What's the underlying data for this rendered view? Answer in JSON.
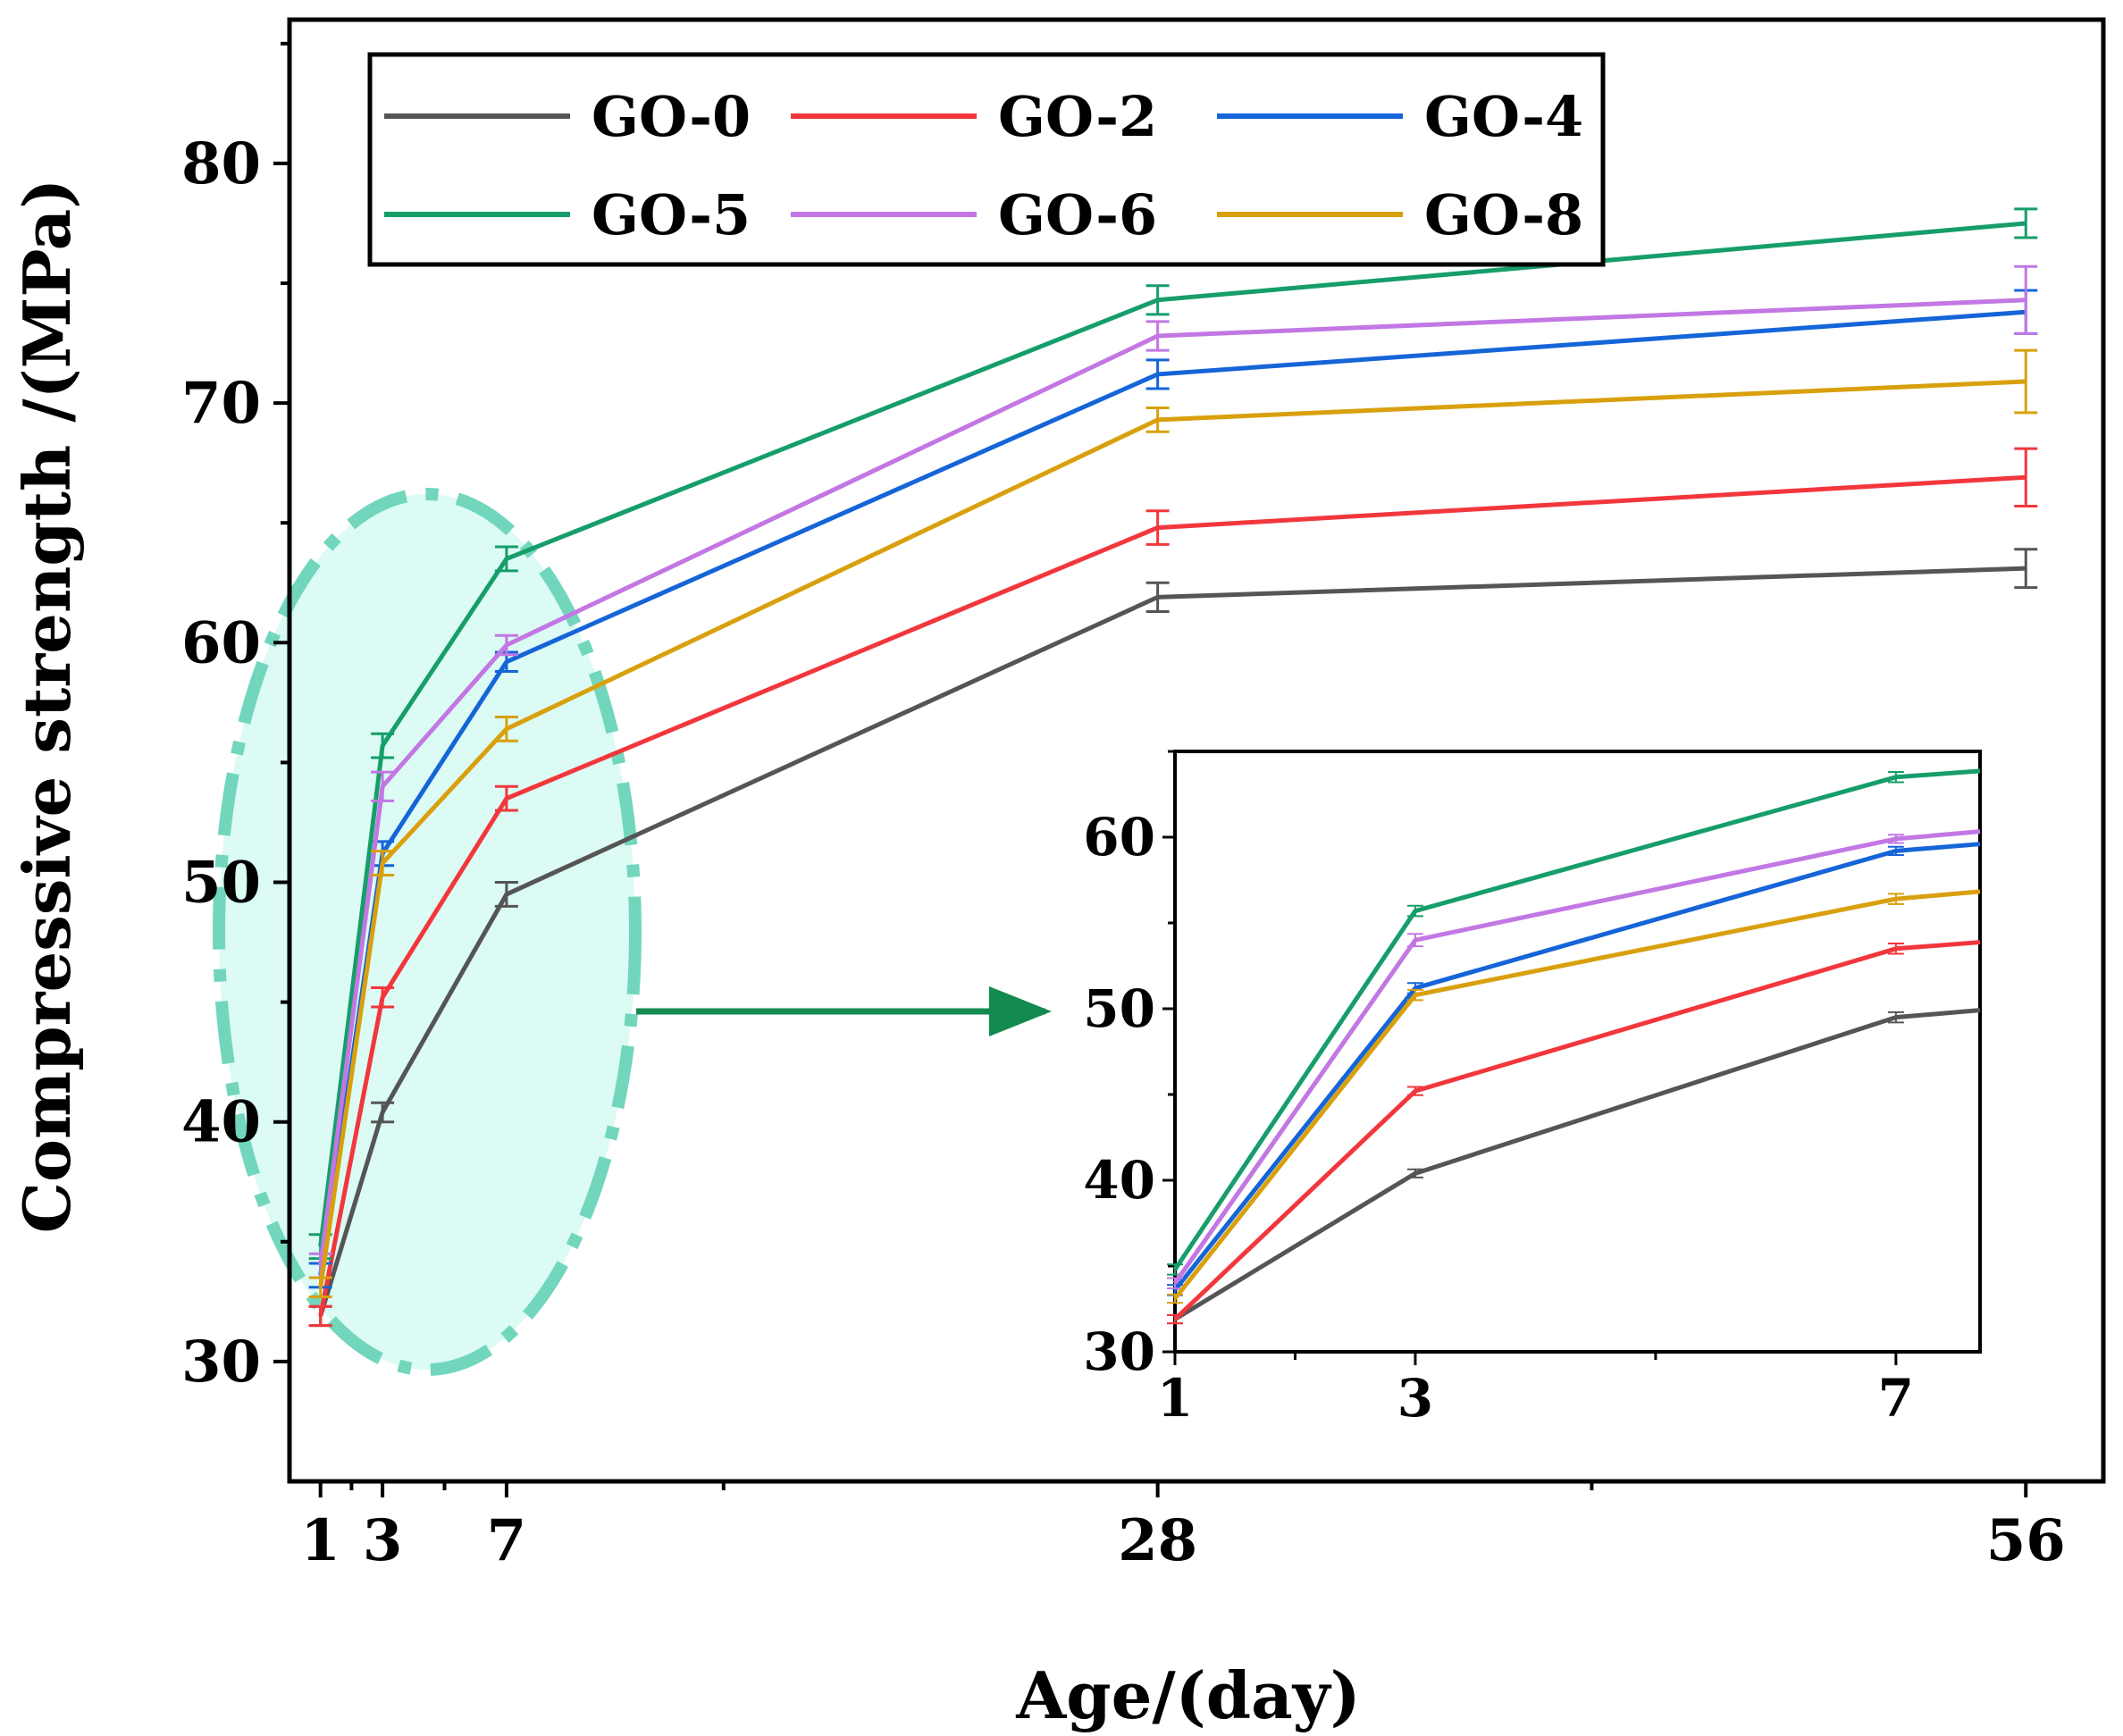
{
  "chart_data": {
    "type": "line",
    "xlabel": "Age/(day)",
    "ylabel": "Compressive strength /(MPa)",
    "x": [
      1,
      3,
      7,
      28,
      56
    ],
    "xticks": [
      1,
      3,
      7,
      28,
      56
    ],
    "xlim": [
      0,
      58.5
    ],
    "ylim": [
      25,
      86
    ],
    "yticks": [
      30,
      40,
      50,
      60,
      70,
      80
    ],
    "series": [
      {
        "name": "GO-0",
        "color": "#555555",
        "values": [
          31.9,
          40.4,
          49.5,
          61.9,
          63.1
        ],
        "errors": [
          0.4,
          0.4,
          0.5,
          0.6,
          0.8
        ]
      },
      {
        "name": "GO-2",
        "color": "#f2373c",
        "values": [
          31.9,
          45.2,
          53.5,
          64.8,
          66.9
        ],
        "errors": [
          0.4,
          0.4,
          0.5,
          0.7,
          1.2
        ]
      },
      {
        "name": "GO-4",
        "color": "#1565d8",
        "values": [
          33.6,
          51.2,
          59.2,
          71.2,
          73.8
        ],
        "errors": [
          0.5,
          0.5,
          0.4,
          0.6,
          0.9
        ]
      },
      {
        "name": "GO-5",
        "color": "#169e6a",
        "values": [
          34.8,
          55.7,
          63.5,
          74.3,
          77.5
        ],
        "errors": [
          0.5,
          0.5,
          0.5,
          0.6,
          0.6
        ]
      },
      {
        "name": "GO-6",
        "color": "#c277e3",
        "values": [
          34.0,
          54.0,
          59.9,
          72.8,
          74.3
        ],
        "errors": [
          0.5,
          0.6,
          0.4,
          0.6,
          1.4
        ]
      },
      {
        "name": "GO-8",
        "color": "#d9a00e",
        "values": [
          33.1,
          50.8,
          56.4,
          69.3,
          70.9
        ],
        "errors": [
          0.4,
          0.5,
          0.5,
          0.5,
          1.3
        ]
      }
    ],
    "legend": "top-left, 2 rows x 3 columns, boxed",
    "annotations": [
      "dashed ellipse highlighting the 1-7 day region with an arrow pointing to the inset"
    ],
    "inset": {
      "type": "line",
      "xticks": [
        1,
        3,
        7
      ],
      "yticks": [
        30,
        40,
        50,
        60
      ],
      "xlim": [
        1,
        7.7
      ],
      "ylim": [
        30,
        65
      ]
    }
  }
}
